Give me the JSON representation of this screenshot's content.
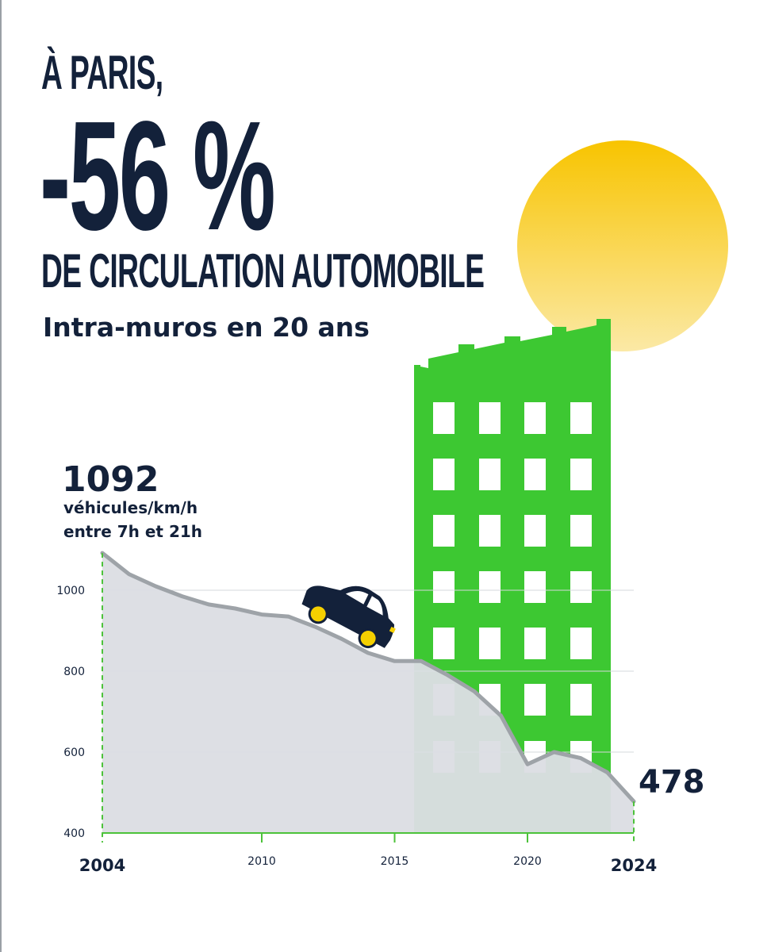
{
  "headline": {
    "line1": "À PARIS,",
    "big": "-56 %",
    "line2": "DE CIRCULATION AUTOMOBILE",
    "line3": "Intra-muros en 20 ans"
  },
  "annotations": {
    "start_value": "1092",
    "start_unit_1": "véhicules/km/h",
    "start_unit_2": "entre 7h et 21h",
    "end_value": "478"
  },
  "colors": {
    "text": "#13213a",
    "area_fill": "#dcdee3",
    "line": "#9ea3a8",
    "building": "#3dc832",
    "sun_top": "#f8c400",
    "sun_bottom": "#fbe9a6",
    "axis_green": "#4cc23a"
  },
  "icons": [
    "sun-illustration",
    "building-illustration",
    "car-icon"
  ],
  "chart_data": {
    "type": "area",
    "title": "",
    "xlabel": "",
    "ylabel": "",
    "x": [
      2004,
      2005,
      2006,
      2007,
      2008,
      2009,
      2010,
      2011,
      2012,
      2013,
      2014,
      2015,
      2016,
      2017,
      2018,
      2019,
      2020,
      2021,
      2022,
      2023,
      2024
    ],
    "values": [
      1092,
      1040,
      1010,
      985,
      965,
      955,
      940,
      935,
      910,
      880,
      845,
      825,
      825,
      790,
      750,
      690,
      570,
      600,
      585,
      550,
      478
    ],
    "xlim": [
      2004,
      2024
    ],
    "ylim": [
      400,
      1092
    ],
    "y_ticks": [
      400,
      600,
      800,
      1000
    ],
    "y_tick_labels": [
      "400",
      "600",
      "800",
      "1000"
    ],
    "x_ticks": [
      2004,
      2010,
      2015,
      2020,
      2024
    ],
    "x_tick_labels": [
      "2004",
      "2010",
      "2015",
      "2020",
      "2024"
    ],
    "x_tick_bold": [
      true,
      false,
      false,
      false,
      true
    ],
    "grid": true
  }
}
